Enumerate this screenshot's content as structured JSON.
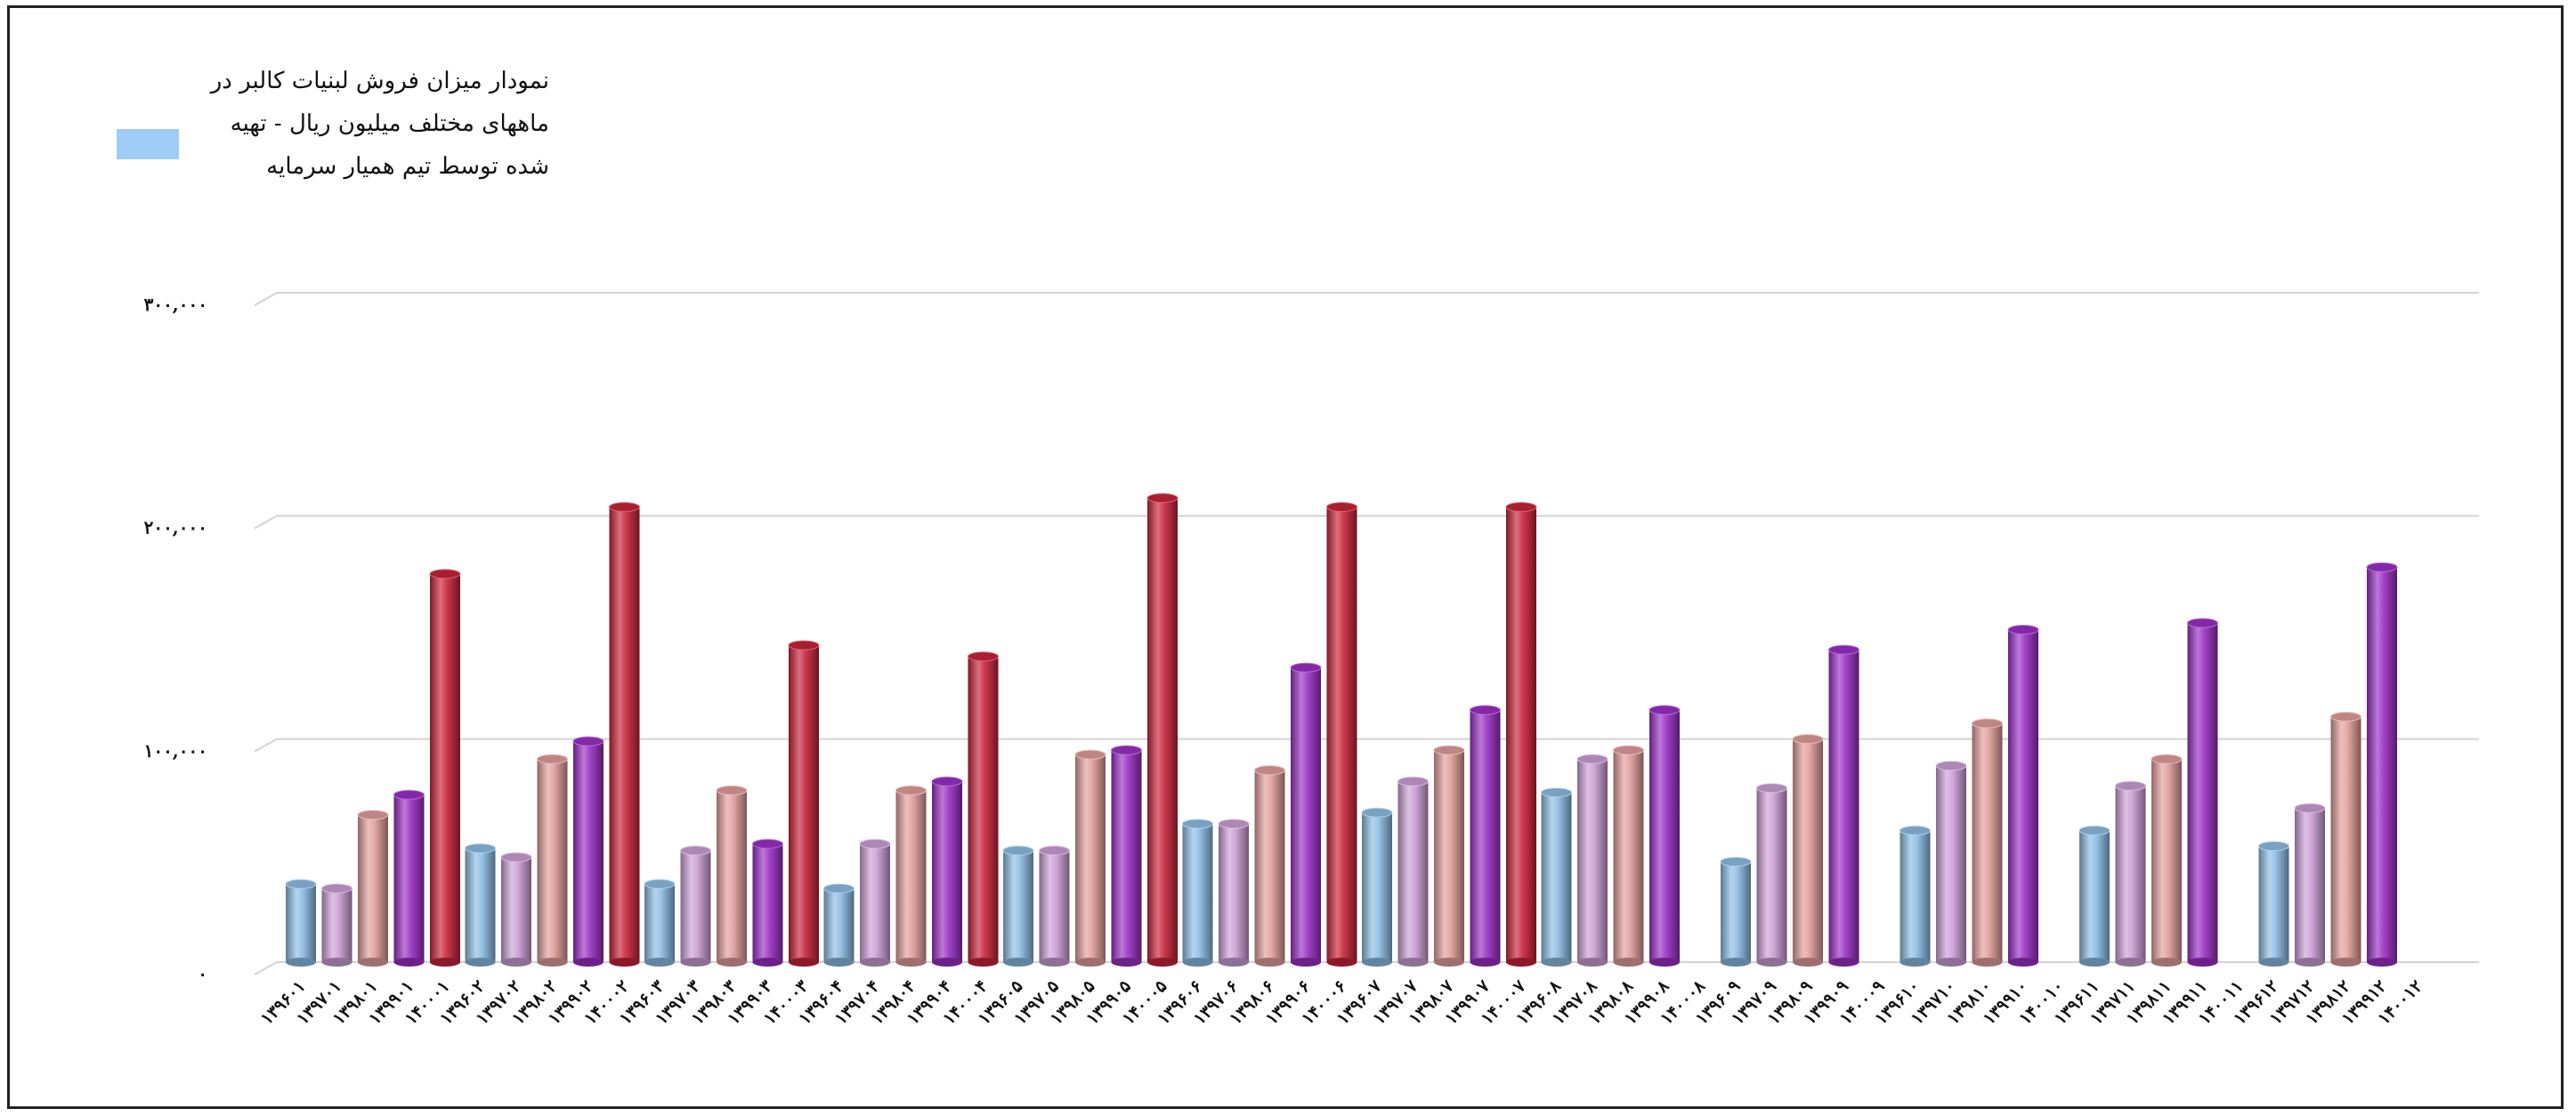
{
  "chart_data": {
    "type": "bar",
    "title": "",
    "xlabel": "",
    "ylabel": "",
    "ylim": [
      0,
      300000
    ],
    "yticks": [
      {
        "value": 0,
        "label": "۰"
      },
      {
        "value": 100000,
        "label": "۱۰۰,۰۰۰"
      },
      {
        "value": 200000,
        "label": "۲۰۰,۰۰۰"
      },
      {
        "value": 300000,
        "label": "۳۰۰,۰۰۰"
      }
    ],
    "grid": true,
    "legend": {
      "position": "top-left",
      "entries": [
        {
          "text": "نمودار میزان فروش لبنیات کالبر در ماههای مختلف میلیون ریال - تهیه شده توسط تیم همیار سرمایه",
          "color": "#9fcdf5"
        }
      ]
    },
    "colors": {
      "blue": "#8dbde4",
      "lilac": "#cc9fd6",
      "pink": "#e19e9c",
      "purple": "#9a2fc4",
      "red": "#c8233a"
    },
    "groups": [
      {
        "bars": [
          {
            "label": "۱۳۹۶۰۱",
            "value": 35000,
            "color": "blue"
          },
          {
            "label": "۱۳۹۷۰۱",
            "value": 33000,
            "color": "lilac"
          },
          {
            "label": "۱۳۹۸۰۱",
            "value": 66000,
            "color": "pink"
          },
          {
            "label": "۱۳۹۹۰۱",
            "value": 75000,
            "color": "purple"
          },
          {
            "label": "۱۴۰۰۰۱",
            "value": 174000,
            "color": "red"
          }
        ]
      },
      {
        "bars": [
          {
            "label": "۱۳۹۶۰۲",
            "value": 51000,
            "color": "blue"
          },
          {
            "label": "۱۳۹۷۰۲",
            "value": 47000,
            "color": "lilac"
          },
          {
            "label": "۱۳۹۸۰۲",
            "value": 91000,
            "color": "pink"
          },
          {
            "label": "۱۳۹۹۰۲",
            "value": 99000,
            "color": "purple"
          },
          {
            "label": "۱۴۰۰۰۲",
            "value": 204000,
            "color": "red"
          }
        ]
      },
      {
        "bars": [
          {
            "label": "۱۳۹۶۰۳",
            "value": 35000,
            "color": "blue"
          },
          {
            "label": "۱۳۹۷۰۳",
            "value": 50000,
            "color": "lilac"
          },
          {
            "label": "۱۳۹۸۰۳",
            "value": 77000,
            "color": "pink"
          },
          {
            "label": "۱۳۹۹۰۳",
            "value": 53000,
            "color": "purple"
          },
          {
            "label": "۱۴۰۰۰۳",
            "value": 142000,
            "color": "red"
          }
        ]
      },
      {
        "bars": [
          {
            "label": "۱۳۹۶۰۴",
            "value": 33000,
            "color": "blue"
          },
          {
            "label": "۱۳۹۷۰۴",
            "value": 53000,
            "color": "lilac"
          },
          {
            "label": "۱۳۹۸۰۴",
            "value": 77000,
            "color": "pink"
          },
          {
            "label": "۱۳۹۹۰۴",
            "value": 81000,
            "color": "purple"
          },
          {
            "label": "۱۴۰۰۰۴",
            "value": 137000,
            "color": "red"
          }
        ]
      },
      {
        "bars": [
          {
            "label": "۱۳۹۶۰۵",
            "value": 50000,
            "color": "blue"
          },
          {
            "label": "۱۳۹۷۰۵",
            "value": 50000,
            "color": "lilac"
          },
          {
            "label": "۱۳۹۸۰۵",
            "value": 93000,
            "color": "pink"
          },
          {
            "label": "۱۳۹۹۰۵",
            "value": 95000,
            "color": "purple"
          },
          {
            "label": "۱۴۰۰۰۵",
            "value": 208000,
            "color": "red"
          }
        ]
      },
      {
        "bars": [
          {
            "label": "۱۳۹۶۰۶",
            "value": 62000,
            "color": "blue"
          },
          {
            "label": "۱۳۹۷۰۶",
            "value": 62000,
            "color": "lilac"
          },
          {
            "label": "۱۳۹۸۰۶",
            "value": 86000,
            "color": "pink"
          },
          {
            "label": "۱۳۹۹۰۶",
            "value": 132000,
            "color": "purple"
          },
          {
            "label": "۱۴۰۰۰۶",
            "value": 204000,
            "color": "red"
          }
        ]
      },
      {
        "bars": [
          {
            "label": "۱۳۹۶۰۷",
            "value": 67000,
            "color": "blue"
          },
          {
            "label": "۱۳۹۷۰۷",
            "value": 81000,
            "color": "lilac"
          },
          {
            "label": "۱۳۹۸۰۷",
            "value": 95000,
            "color": "pink"
          },
          {
            "label": "۱۳۹۹۰۷",
            "value": 113000,
            "color": "purple"
          },
          {
            "label": "۱۴۰۰۰۷",
            "value": 204000,
            "color": "red"
          }
        ]
      },
      {
        "bars": [
          {
            "label": "۱۳۹۶۰۸",
            "value": 76000,
            "color": "blue"
          },
          {
            "label": "۱۳۹۷۰۸",
            "value": 91000,
            "color": "lilac"
          },
          {
            "label": "۱۳۹۸۰۸",
            "value": 95000,
            "color": "pink"
          },
          {
            "label": "۱۳۹۹۰۸",
            "value": 113000,
            "color": "purple"
          },
          {
            "label": "۱۴۰۰۰۸",
            "value": null,
            "color": "red"
          }
        ]
      },
      {
        "bars": [
          {
            "label": "۱۳۹۶۰۹",
            "value": 45000,
            "color": "blue"
          },
          {
            "label": "۱۳۹۷۰۹",
            "value": 78000,
            "color": "lilac"
          },
          {
            "label": "۱۳۹۸۰۹",
            "value": 100000,
            "color": "pink"
          },
          {
            "label": "۱۳۹۹۰۹",
            "value": 140000,
            "color": "purple"
          },
          {
            "label": "۱۴۰۰۰۹",
            "value": null,
            "color": "red"
          }
        ]
      },
      {
        "bars": [
          {
            "label": "۱۳۹۶۱۰",
            "value": 59000,
            "color": "blue"
          },
          {
            "label": "۱۳۹۷۱۰",
            "value": 88000,
            "color": "lilac"
          },
          {
            "label": "۱۳۹۸۱۰",
            "value": 107000,
            "color": "pink"
          },
          {
            "label": "۱۳۹۹۱۰",
            "value": 149000,
            "color": "purple"
          },
          {
            "label": "۱۴۰۰۱۰",
            "value": null,
            "color": "red"
          }
        ]
      },
      {
        "bars": [
          {
            "label": "۱۳۹۶۱۱",
            "value": 59000,
            "color": "blue"
          },
          {
            "label": "۱۳۹۷۱۱",
            "value": 79000,
            "color": "lilac"
          },
          {
            "label": "۱۳۹۸۱۱",
            "value": 91000,
            "color": "pink"
          },
          {
            "label": "۱۳۹۹۱۱",
            "value": 152000,
            "color": "purple"
          },
          {
            "label": "۱۴۰۰۱۱",
            "value": null,
            "color": "red"
          }
        ]
      },
      {
        "bars": [
          {
            "label": "۱۳۹۶۱۲",
            "value": 52000,
            "color": "blue"
          },
          {
            "label": "۱۳۹۷۱۲",
            "value": 69000,
            "color": "lilac"
          },
          {
            "label": "۱۳۹۸۱۲",
            "value": 110000,
            "color": "pink"
          },
          {
            "label": "۱۳۹۹۱۲",
            "value": 177000,
            "color": "purple"
          },
          {
            "label": "۱۴۰۰۱۲",
            "value": null,
            "color": "red"
          }
        ]
      }
    ]
  }
}
